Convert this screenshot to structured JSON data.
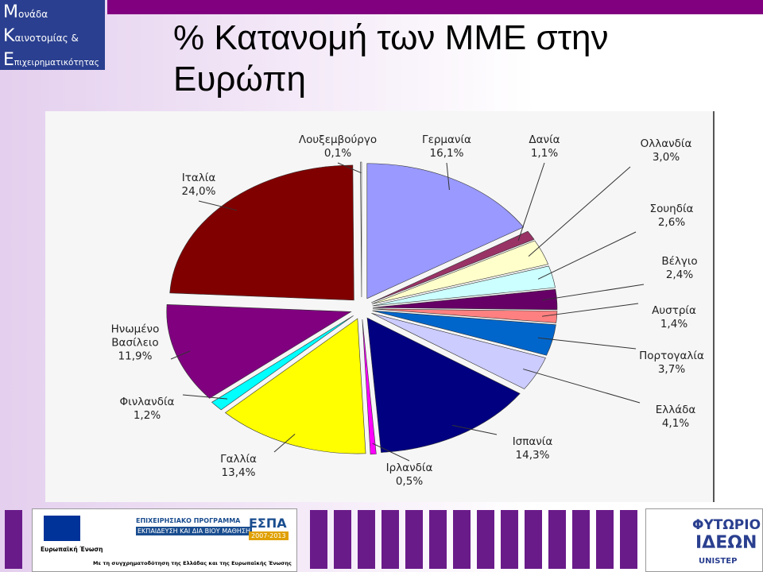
{
  "header": {
    "logo_lines": [
      "Μονάδα",
      "Καινοτομίας &",
      "Επιχειρηματικότητας"
    ],
    "title": "% Κατανομή των ΜΜΕ στην Ευρώπη"
  },
  "chart_data": {
    "type": "pie",
    "categories": [
      "Γερμανία",
      "Δανία",
      "Ολλανδία",
      "Σουηδία",
      "Βέλγιο",
      "Αυστρία",
      "Πορτογαλία",
      "Ελλάδα",
      "Ισπανία",
      "Ιρλανδία",
      "Γαλλία",
      "Φινλανδία",
      "Ηνωμένο Βασίλειο",
      "Ιταλία",
      "Λουξεμβούργο"
    ],
    "values": [
      16.1,
      1.1,
      3.0,
      2.6,
      2.4,
      1.4,
      3.7,
      4.1,
      14.3,
      0.5,
      13.4,
      1.2,
      11.9,
      24.0,
      0.1
    ],
    "value_labels": [
      "16,1%",
      "1,1%",
      "3,0%",
      "2,6%",
      "2,4%",
      "1,4%",
      "3,7%",
      "4,1%",
      "14,3%",
      "0,5%",
      "13,4%",
      "1,2%",
      "11,9%",
      "24,0%",
      "0,1%"
    ],
    "colors": [
      "#9999ff",
      "#993366",
      "#ffffcc",
      "#ccffff",
      "#660066",
      "#ff8080",
      "#0066cc",
      "#ccccff",
      "#000080",
      "#ff00ff",
      "#ffff00",
      "#00ffff",
      "#800080",
      "#800000",
      "#f4f4f4"
    ]
  },
  "footer": {
    "eu": "Ευρωπαϊκή Ένωση",
    "programme": [
      "ΕΠΙΧΕΙΡΗΣΙΑΚΟ ΠΡΟΓΡΑΜΜΑ",
      "ΕΚΠΑΙΔΕΥΣΗ ΚΑΙ ΔΙΑ ΒΙΟΥ ΜΑΘΗΣΗ"
    ],
    "espa": [
      "ΕΣΠΑ",
      "2007-2013"
    ],
    "cofunding": "Με τη συγχρηματοδότηση της Ελλάδας και της Ευρωπαϊκής Ένωσης",
    "incubator": [
      "ΦΥΤΩΡΙΟ",
      "ΙΔΕΩΝ",
      "UNISTEP"
    ]
  }
}
